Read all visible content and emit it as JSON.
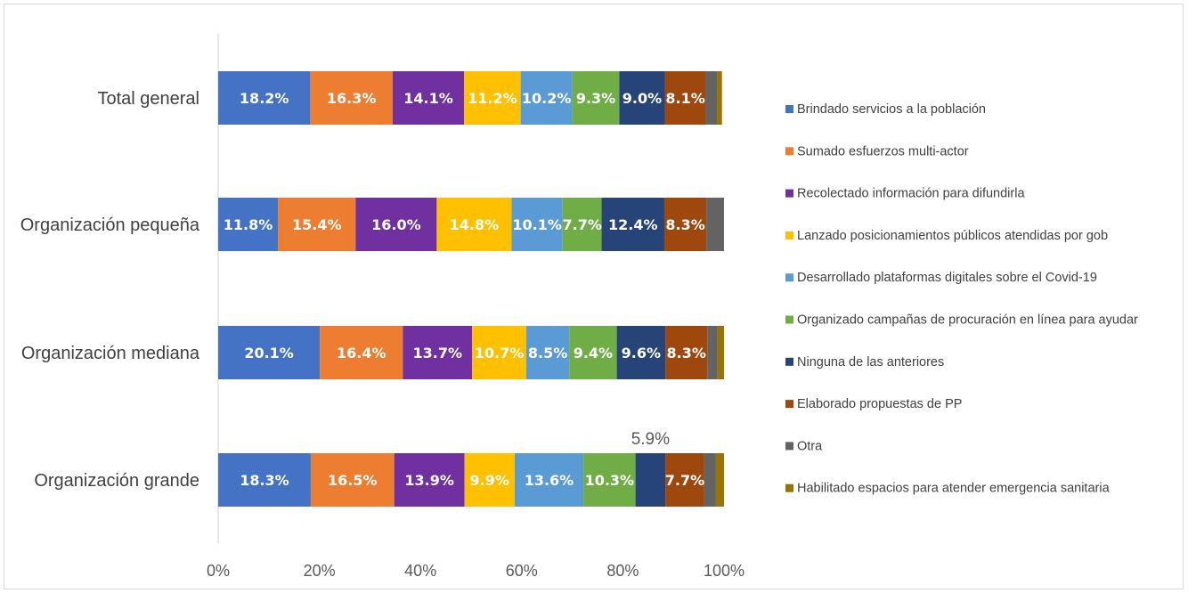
{
  "chart_data": {
    "type": "bar",
    "orientation": "horizontal",
    "stacked": true,
    "percent": true,
    "xlim": [
      0,
      100
    ],
    "x_ticks": [
      "0%",
      "20%",
      "40%",
      "60%",
      "80%",
      "100%"
    ],
    "grid": false,
    "legend_position": "right",
    "categories": [
      "Total general",
      "Organización pequeña",
      "Organización mediana",
      "Organización grande"
    ],
    "series": [
      {
        "name": "Brindado servicios a la población",
        "color": "#4472C4",
        "label_color": "#ffffff",
        "values": [
          18.2,
          11.8,
          20.1,
          18.3
        ],
        "labels": [
          "18.2%",
          "11.8%",
          "20.1%",
          "18.3%"
        ]
      },
      {
        "name": "Sumado esfuerzos multi-actor",
        "color": "#ED7D31",
        "label_color": "#ffffff",
        "values": [
          16.3,
          15.4,
          16.4,
          16.5
        ],
        "labels": [
          "16.3%",
          "15.4%",
          "16.4%",
          "16.5%"
        ]
      },
      {
        "name": "Recolectado información para difundirla",
        "color": "#7030A0",
        "label_color": "#ffffff",
        "values": [
          14.1,
          16.0,
          13.7,
          13.9
        ],
        "labels": [
          "14.1%",
          "16.0%",
          "13.7%",
          "13.9%"
        ]
      },
      {
        "name": "Lanzado posicionamientos públicos atendidas por gob",
        "color": "#FFC000",
        "label_color": "#ffffff",
        "values": [
          11.2,
          14.8,
          10.7,
          9.9
        ],
        "labels": [
          "11.2%",
          "14.8%",
          "10.7%",
          "9.9%"
        ]
      },
      {
        "name": "Desarrollado plataformas digitales sobre el Covid-19",
        "color": "#5B9BD5",
        "label_color": "#ffffff",
        "values": [
          10.2,
          10.1,
          8.5,
          13.6
        ],
        "labels": [
          "10.2%",
          "10.1%",
          "8.5%",
          "13.6%"
        ]
      },
      {
        "name": "Organizado campañas de procuración en línea para ayudar",
        "color": "#70AD47",
        "label_color": "#ffffff",
        "values": [
          9.3,
          7.7,
          9.4,
          10.3
        ],
        "labels": [
          "9.3%",
          "7.7%",
          "9.4%",
          "10.3%"
        ]
      },
      {
        "name": "Ninguna de las anteriores",
        "color": "#264478",
        "label_color": "#ffffff",
        "values": [
          9.0,
          12.4,
          9.6,
          5.9
        ],
        "labels": [
          "9.0%",
          "12.4%",
          "9.6%",
          "5.9%"
        ],
        "outside_label": [
          false,
          false,
          false,
          true
        ]
      },
      {
        "name": "Elaborado propuestas de PP",
        "color": "#9E480E",
        "label_color": "#ffffff",
        "values": [
          8.1,
          8.3,
          8.3,
          7.7
        ],
        "labels": [
          "8.1%",
          "8.3%",
          "8.3%",
          "7.7%"
        ]
      },
      {
        "name": "Otra",
        "color": "#636363",
        "label_color": "#ffffff",
        "values": [
          2.2,
          3.5,
          2.0,
          2.3
        ],
        "labels": [
          "",
          "",
          "",
          ""
        ]
      },
      {
        "name": "Habilitado espacios para atender emergencia sanitaria",
        "color": "#997300",
        "label_color": "#ffffff",
        "values": [
          1.0,
          0.0,
          1.3,
          1.6
        ],
        "labels": [
          "",
          "",
          "",
          ""
        ]
      }
    ]
  }
}
